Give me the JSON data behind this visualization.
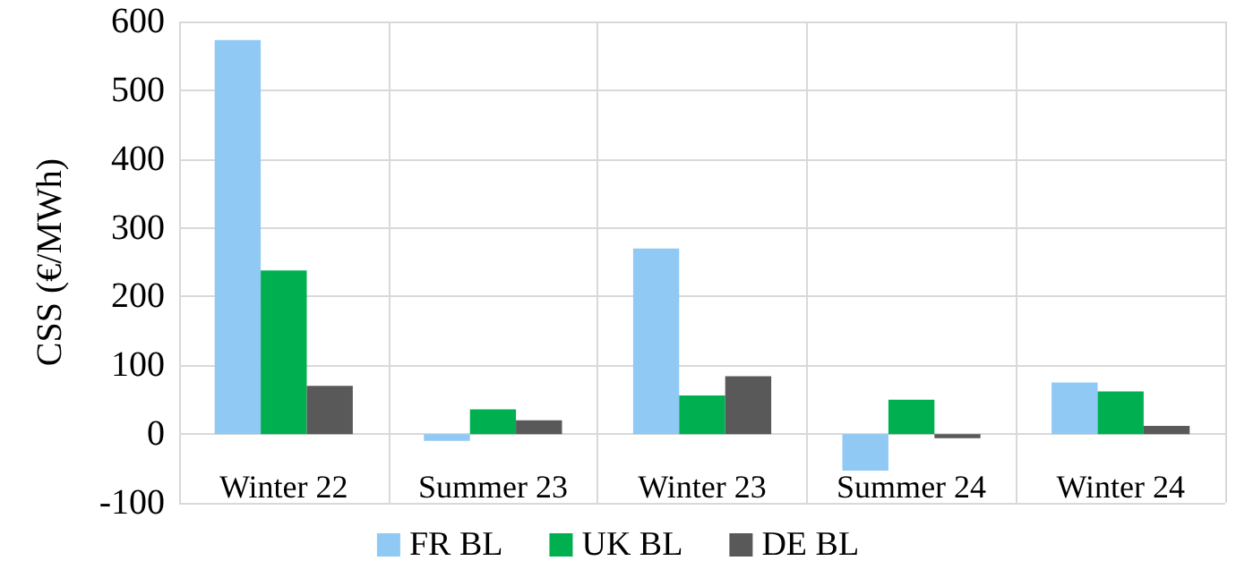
{
  "chart_data": {
    "type": "bar",
    "ylabel": "CSS (€/MWh)",
    "categories": [
      "Winter 22",
      "Summer 23",
      "Winter 23",
      "Summer 24",
      "Winter 24"
    ],
    "series": [
      {
        "name": "FR BL",
        "color": "#8fc9f4",
        "values": [
          573,
          -10,
          270,
          -53,
          75
        ]
      },
      {
        "name": "UK BL",
        "color": "#00b050",
        "values": [
          238,
          36,
          56,
          50,
          62
        ]
      },
      {
        "name": "DE BL",
        "color": "#595959",
        "values": [
          70,
          20,
          84,
          -6,
          12
        ]
      }
    ],
    "ylim": [
      -100,
      600
    ],
    "yticks": [
      -100,
      0,
      100,
      200,
      300,
      400,
      500,
      600
    ],
    "grid": true,
    "legend": "bottom"
  }
}
